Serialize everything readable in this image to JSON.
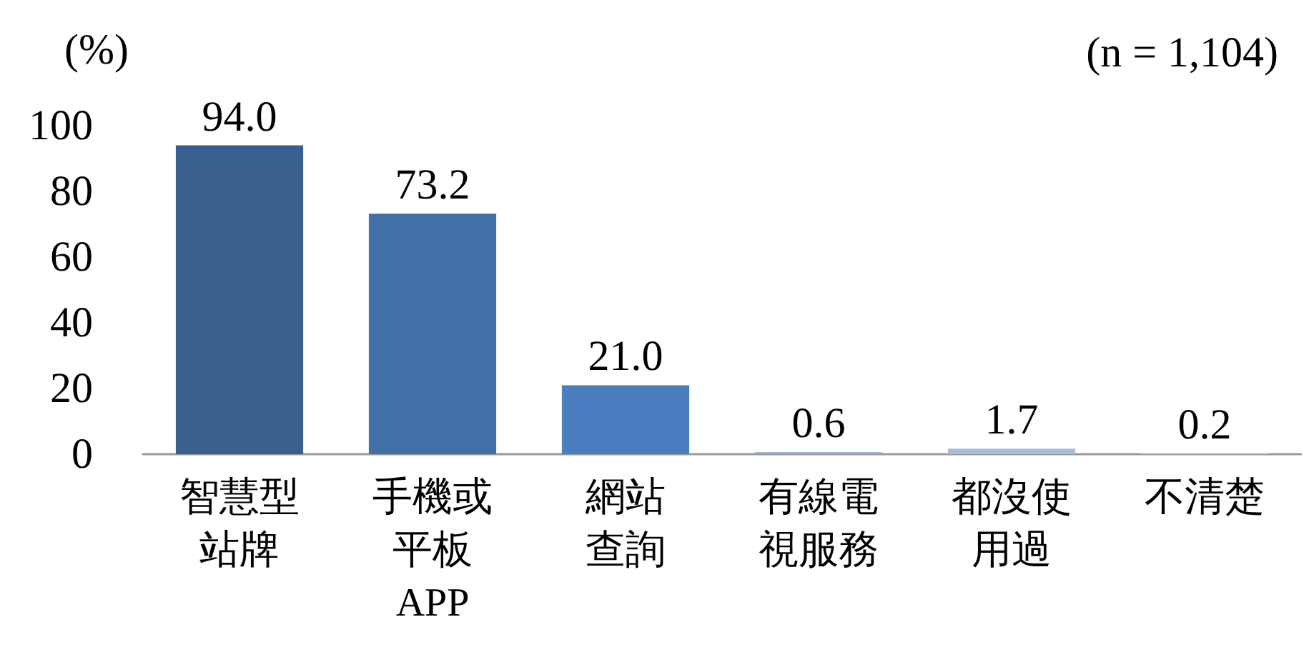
{
  "chart_data": {
    "type": "bar",
    "ylabel": "(%)",
    "annotations": [
      "(n = 1,104)"
    ],
    "categories": [
      "智慧型站牌",
      "手機或平板APP",
      "網站查詢",
      "有線電視服務",
      "都沒使用過",
      "不清楚"
    ],
    "values": [
      94.0,
      73.2,
      21.0,
      0.6,
      1.7,
      0.2
    ],
    "value_labels": [
      "94.0",
      "73.2",
      "21.0",
      "0.6",
      "1.7",
      "0.2"
    ],
    "colors": [
      "#3b5f8e",
      "#4270a6",
      "#4a7ec0",
      "#8fa9cf",
      "#a9bddb",
      "#c3d2e8"
    ],
    "ylim": [
      0,
      100
    ],
    "yticks": [
      0,
      20,
      40,
      60,
      80,
      100
    ],
    "grid": false,
    "data_labels": true
  }
}
